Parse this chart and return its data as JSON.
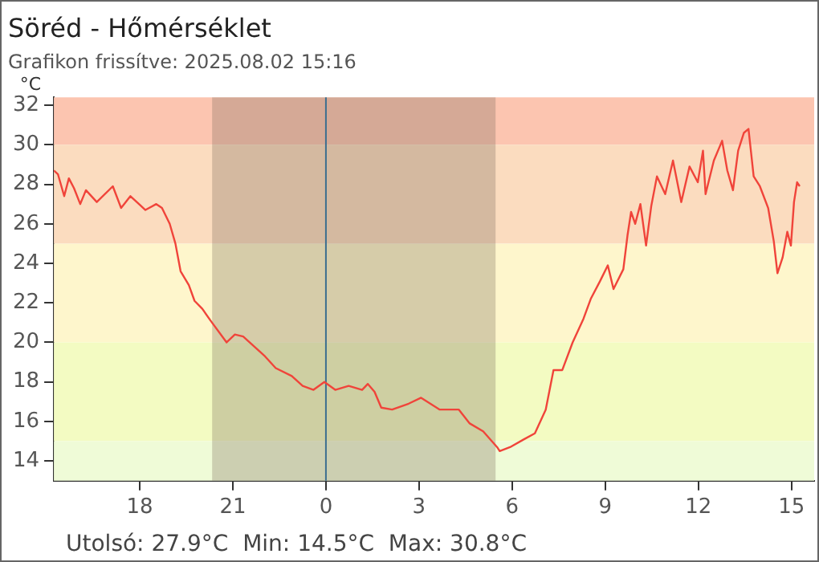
{
  "chart_data": {
    "type": "line",
    "title": "Söréd - Hőmérséklet",
    "subtitle": "Grafikon frissítve: 2025.08.02 15:16",
    "ylabel": "°C",
    "annotations": [
      "Utolsó: 27.9°C  Min: 14.5°C  Max: 30.8°C"
    ],
    "series": [
      {
        "color": "#f0443a",
        "x": [
          "2025-08-01T15:14",
          "2025-08-01T15:22",
          "2025-08-01T15:34",
          "2025-08-01T15:43",
          "2025-08-01T15:53",
          "2025-08-01T16:05",
          "2025-08-01T16:16",
          "2025-08-01T16:37",
          "2025-08-01T17:08",
          "2025-08-01T17:24",
          "2025-08-01T17:42",
          "2025-08-01T18:11",
          "2025-08-01T18:32",
          "2025-08-01T18:43",
          "2025-08-01T18:58",
          "2025-08-01T19:09",
          "2025-08-01T19:19",
          "2025-08-01T19:35",
          "2025-08-01T19:46",
          "2025-08-01T20:01",
          "2025-08-01T20:17",
          "2025-08-01T20:48",
          "2025-08-01T21:04",
          "2025-08-01T21:20",
          "2025-08-01T21:41",
          "2025-08-01T22:02",
          "2025-08-01T22:23",
          "2025-08-01T22:54",
          "2025-08-01T23:15",
          "2025-08-01T23:36",
          "2025-08-01T23:57",
          "2025-08-02T00:18",
          "2025-08-02T00:44",
          "2025-08-02T01:10",
          "2025-08-02T01:21",
          "2025-08-02T01:34",
          "2025-08-02T01:47",
          "2025-08-02T02:08",
          "2025-08-02T02:40",
          "2025-08-02T03:04",
          "2025-08-02T03:40",
          "2025-08-02T04:17",
          "2025-08-02T04:38",
          "2025-08-02T05:04",
          "2025-08-02T05:31",
          "2025-08-02T05:36",
          "2025-08-02T05:56",
          "2025-08-02T06:23",
          "2025-08-02T06:44",
          "2025-08-02T07:05",
          "2025-08-02T07:20",
          "2025-08-02T07:37",
          "2025-08-02T07:57",
          "2025-08-02T08:18",
          "2025-08-02T08:32",
          "2025-08-02T08:50",
          "2025-08-02T09:05",
          "2025-08-02T09:16",
          "2025-08-02T09:35",
          "2025-08-02T09:43",
          "2025-08-02T09:50",
          "2025-08-02T09:58",
          "2025-08-02T10:08",
          "2025-08-02T10:19",
          "2025-08-02T10:29",
          "2025-08-02T10:40",
          "2025-08-02T10:56",
          "2025-08-02T11:11",
          "2025-08-02T11:27",
          "2025-08-02T11:43",
          "2025-08-02T11:59",
          "2025-08-02T12:09",
          "2025-08-02T12:14",
          "2025-08-02T12:30",
          "2025-08-02T12:46",
          "2025-08-02T12:56",
          "2025-08-02T13:07",
          "2025-08-02T13:17",
          "2025-08-02T13:28",
          "2025-08-02T13:37",
          "2025-08-02T13:47",
          "2025-08-02T13:59",
          "2025-08-02T14:15",
          "2025-08-02T14:26",
          "2025-08-02T14:33",
          "2025-08-02T14:43",
          "2025-08-02T14:52",
          "2025-08-02T14:59",
          "2025-08-02T15:05",
          "2025-08-02T15:11",
          "2025-08-02T15:16"
        ],
        "values": [
          28.7,
          28.5,
          27.4,
          28.3,
          27.8,
          27,
          27.7,
          27.1,
          27.9,
          26.8,
          27.4,
          26.7,
          27,
          26.8,
          26,
          25,
          23.6,
          22.9,
          22.1,
          21.7,
          21.1,
          20,
          20.4,
          20.3,
          19.8,
          19.3,
          18.7,
          18.3,
          17.8,
          17.6,
          18,
          17.6,
          17.8,
          17.6,
          17.9,
          17.5,
          16.7,
          16.6,
          16.9,
          17.2,
          16.6,
          16.6,
          15.9,
          15.5,
          14.7,
          14.5,
          14.7,
          15.1,
          15.4,
          16.6,
          18.6,
          18.6,
          20,
          21.2,
          22.2,
          23.1,
          23.9,
          22.7,
          23.7,
          25.4,
          26.6,
          26,
          27,
          24.9,
          26.9,
          28.4,
          27.5,
          29.2,
          27.1,
          28.9,
          28.1,
          29.7,
          27.5,
          29.2,
          30.2,
          28.7,
          27.7,
          29.7,
          30.6,
          30.8,
          28.4,
          27.9,
          26.8,
          25.1,
          23.5,
          24.3,
          25.6,
          24.9,
          27.1,
          28.1,
          27.9
        ]
      }
    ],
    "xlim": [
      "2025-08-01T15:14",
      "2025-08-02T15:44"
    ],
    "xticks": [
      {
        "value": "2025-08-01T18:00",
        "label": "18"
      },
      {
        "value": "2025-08-01T21:00",
        "label": "21"
      },
      {
        "value": "2025-08-02T00:00",
        "label": "0"
      },
      {
        "value": "2025-08-02T03:00",
        "label": "3"
      },
      {
        "value": "2025-08-02T06:00",
        "label": "6"
      },
      {
        "value": "2025-08-02T09:00",
        "label": "9"
      },
      {
        "value": "2025-08-02T12:00",
        "label": "12"
      },
      {
        "value": "2025-08-02T15:00",
        "label": "15"
      }
    ],
    "ylim": [
      13,
      32.4
    ],
    "yticks": [
      14,
      16,
      18,
      20,
      22,
      24,
      26,
      28,
      30,
      32
    ],
    "bands": [
      {
        "axis": "y",
        "from": 30,
        "to": 32.4,
        "color": "#fcc5b0"
      },
      {
        "axis": "y",
        "from": 25,
        "to": 30,
        "color": "#fbdcbf"
      },
      {
        "axis": "y",
        "from": 20,
        "to": 25,
        "color": "#fef6cc"
      },
      {
        "axis": "y",
        "from": 15,
        "to": 20,
        "color": "#f3fbc2"
      },
      {
        "axis": "y",
        "from": 13,
        "to": 15,
        "color": "#effbd7"
      },
      {
        "axis": "x",
        "from": "2025-08-01T20:20",
        "to": "2025-08-02T05:28",
        "color": "#7a6a5a"
      }
    ],
    "ref_lines": [
      {
        "axis": "x",
        "value": "2025-08-02T00:00",
        "color": "#3c6e8f"
      }
    ]
  }
}
